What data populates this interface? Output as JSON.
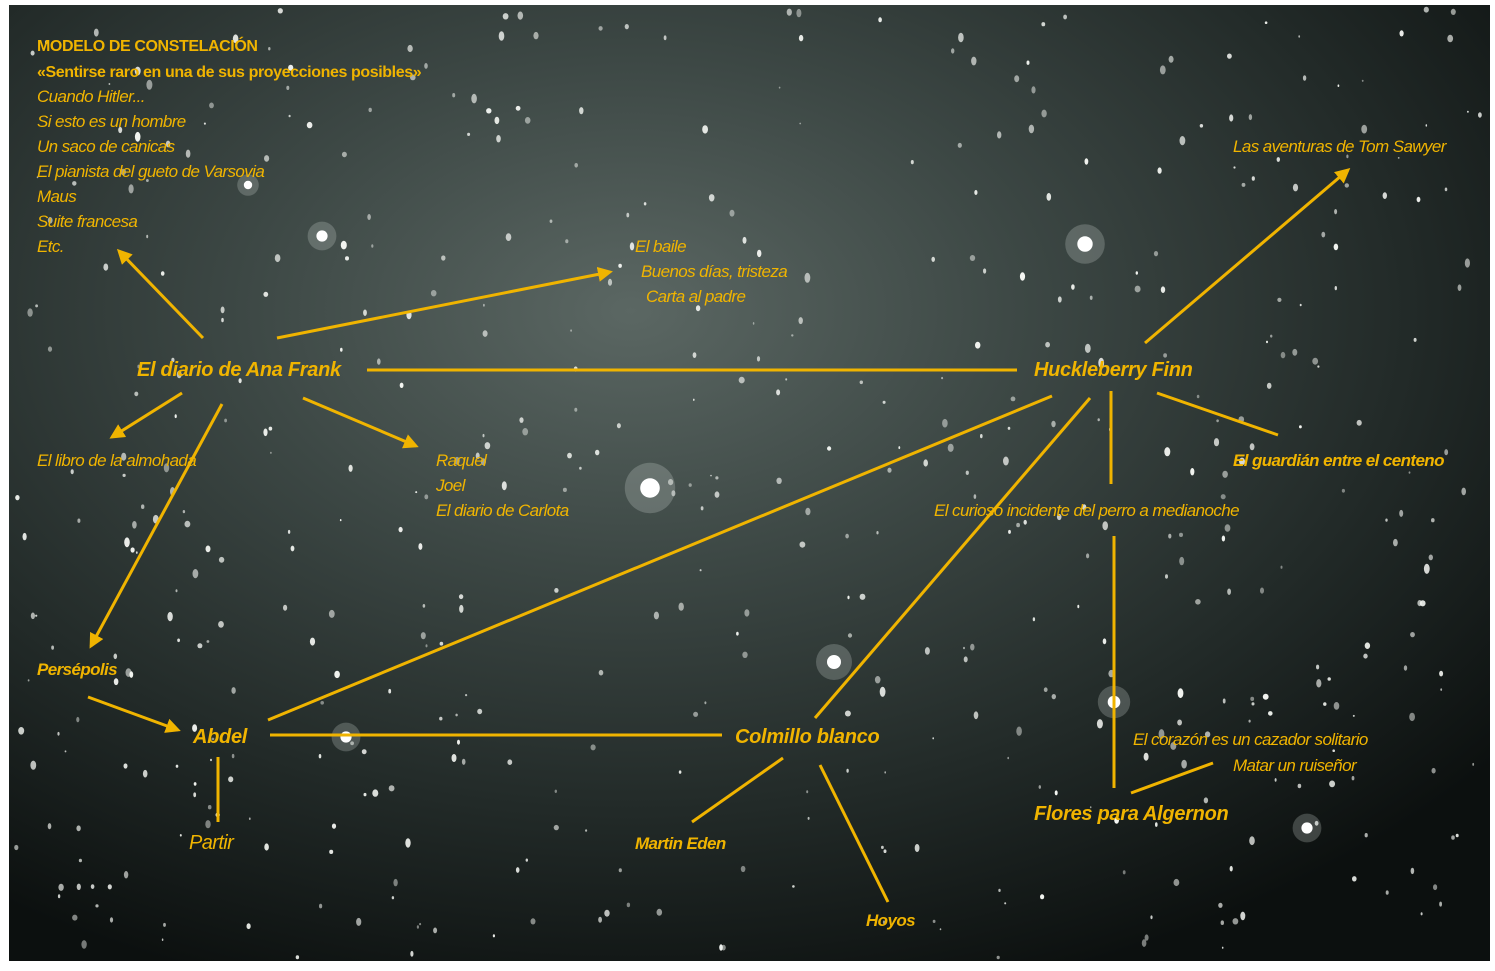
{
  "header": {
    "title": "MODELO DE CONSTELACIÓN",
    "subtitle": "«Sentirse raro en una de sus proyecciones posibles»",
    "items": [
      "Cuando Hitler...",
      "Si esto es un hombre",
      "Un saco de canicas",
      "El pianista del gueto de Varsovia",
      "Maus",
      "Suite francesa",
      "Etc."
    ]
  },
  "nodes": [
    {
      "label": "El diario de Ana Frank"
    },
    {
      "label": "Huckleberry Finn"
    },
    {
      "label": "Abdel"
    },
    {
      "label": "Colmillo blanco"
    },
    {
      "label": "Flores para Algernon"
    },
    {
      "label": "Persépolis"
    },
    {
      "label": "Partir"
    },
    {
      "label": "Martin Eden"
    },
    {
      "label": "Hoyos"
    },
    {
      "label": "El libro de la almohada"
    },
    {
      "label": "Las aventuras de Tom Sawyer"
    },
    {
      "label": "El guardián entre el centeno"
    },
    {
      "label": "El curioso incidente del perro a medianoche"
    }
  ],
  "groups": [
    {
      "items": [
        "El baile",
        "Buenos días, tristeza",
        "Carta al padre"
      ]
    },
    {
      "items": [
        "Raquel",
        "Joel",
        "El diario de Carlota"
      ]
    },
    {
      "items": [
        "El corazón es un cazador solitario",
        "Matar un ruiseñor"
      ]
    }
  ]
}
